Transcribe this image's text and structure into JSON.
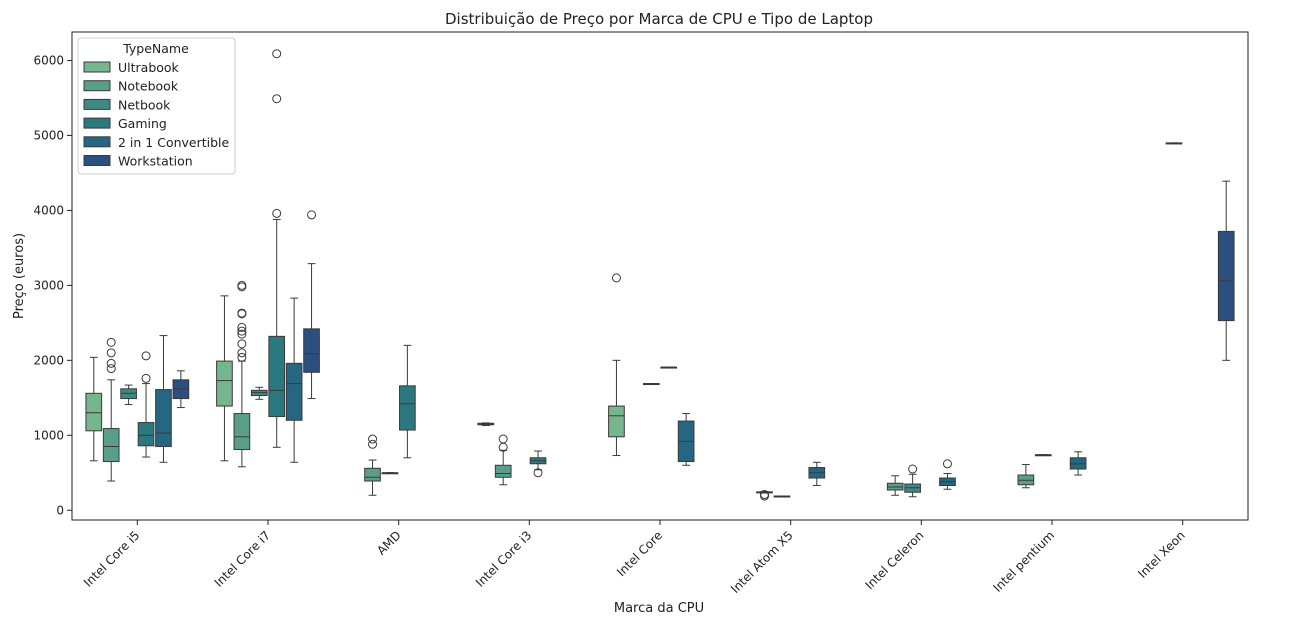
{
  "chart_data": {
    "type": "boxplot",
    "title": "Distribuição de Preço por Marca de CPU e Tipo de Laptop",
    "xlabel": "Marca da CPU",
    "ylabel": "Preço (euros)",
    "ylim": [
      -130,
      6380
    ],
    "yticks": [
      0,
      1000,
      2000,
      3000,
      4000,
      5000,
      6000
    ],
    "grid": false,
    "legend": {
      "title": "TypeName",
      "placement": "top-left"
    },
    "categories": [
      "Intel Core i5",
      "Intel Core i7",
      "AMD",
      "Intel Core i3",
      "Intel Core",
      "Intel Atom X5",
      "Intel Celeron",
      "Intel pentium",
      "Intel Xeon"
    ],
    "series": [
      {
        "name": "Ultrabook",
        "color": "#76b58e",
        "boxes": [
          {
            "cat": 0,
            "wlo": 660,
            "q1": 1060,
            "med": 1300,
            "q3": 1560,
            "whi": 2040,
            "out": []
          },
          {
            "cat": 1,
            "wlo": 660,
            "q1": 1390,
            "med": 1730,
            "q3": 1990,
            "whi": 2860,
            "out": []
          },
          null,
          {
            "cat": 3,
            "wlo": 1130,
            "q1": 1140,
            "med": 1150,
            "q3": 1160,
            "whi": 1165,
            "out": []
          },
          {
            "cat": 4,
            "wlo": 730,
            "q1": 980,
            "med": 1260,
            "q3": 1390,
            "whi": 2000,
            "out": [
              3100
            ]
          },
          null,
          null,
          null,
          null
        ]
      },
      {
        "name": "Notebook",
        "color": "#5a9e8a",
        "boxes": [
          {
            "cat": 0,
            "wlo": 390,
            "q1": 650,
            "med": 850,
            "q3": 1090,
            "whi": 1740,
            "out": [
              1890,
              1960,
              2100,
              2240
            ]
          },
          {
            "cat": 1,
            "wlo": 580,
            "q1": 810,
            "med": 980,
            "q3": 1290,
            "whi": 1990,
            "out": [
              2040,
              2100,
              2220,
              2350,
              2390,
              2440,
              2620,
              2630,
              2980,
              3000
            ]
          },
          {
            "cat": 2,
            "wlo": 200,
            "q1": 390,
            "med": 440,
            "q3": 560,
            "whi": 670,
            "out": [
              880,
              950
            ]
          },
          {
            "cat": 3,
            "wlo": 340,
            "q1": 440,
            "med": 490,
            "q3": 600,
            "whi": 800,
            "out": [
              840,
              950
            ]
          },
          null,
          {
            "cat": 5,
            "wlo": 230,
            "q1": 235,
            "med": 240,
            "q3": 245,
            "whi": 250,
            "out": [
              190,
              210
            ]
          },
          {
            "cat": 6,
            "wlo": 200,
            "q1": 270,
            "med": 310,
            "q3": 360,
            "whi": 460,
            "out": []
          },
          {
            "cat": 7,
            "wlo": 300,
            "q1": 340,
            "med": 400,
            "q3": 470,
            "whi": 610,
            "out": []
          },
          null
        ]
      },
      {
        "name": "Netbook",
        "color": "#3e8a83",
        "boxes": [
          {
            "cat": 0,
            "wlo": 1410,
            "q1": 1490,
            "med": 1560,
            "q3": 1620,
            "whi": 1670,
            "out": []
          },
          {
            "cat": 1,
            "wlo": 1480,
            "q1": 1530,
            "med": 1570,
            "q3": 1600,
            "whi": 1640,
            "out": []
          },
          {
            "cat": 2,
            "wlo": 500,
            "q1": 500,
            "med": 500,
            "q3": 500,
            "whi": 500,
            "out": []
          },
          null,
          {
            "cat": 4,
            "wlo": 1690,
            "q1": 1690,
            "med": 1690,
            "q3": 1690,
            "whi": 1690,
            "out": []
          },
          {
            "cat": 5,
            "wlo": 190,
            "q1": 190,
            "med": 190,
            "q3": 190,
            "whi": 190,
            "out": []
          },
          {
            "cat": 6,
            "wlo": 180,
            "q1": 240,
            "med": 300,
            "q3": 350,
            "whi": 480,
            "out": [
              550
            ]
          },
          {
            "cat": 7,
            "wlo": 740,
            "q1": 740,
            "med": 740,
            "q3": 740,
            "whi": 740,
            "out": []
          },
          {
            "cat": 8,
            "wlo": 4900,
            "q1": 4900,
            "med": 4900,
            "q3": 4900,
            "whi": 4900,
            "out": []
          }
        ]
      },
      {
        "name": "Gaming",
        "color": "#2c787f",
        "boxes": [
          {
            "cat": 0,
            "wlo": 710,
            "q1": 860,
            "med": 1000,
            "q3": 1170,
            "whi": 1690,
            "out": [
              1760,
              2060
            ]
          },
          {
            "cat": 1,
            "wlo": 840,
            "q1": 1250,
            "med": 1600,
            "q3": 2320,
            "whi": 3880,
            "out": [
              3960,
              5490,
              6090
            ]
          },
          {
            "cat": 2,
            "wlo": 700,
            "q1": 1070,
            "med": 1420,
            "q3": 1660,
            "whi": 2200,
            "out": []
          },
          {
            "cat": 3,
            "wlo": 540,
            "q1": 620,
            "med": 660,
            "q3": 700,
            "whi": 790,
            "out": [
              500
            ]
          },
          {
            "cat": 4,
            "wlo": 1910,
            "q1": 1910,
            "med": 1910,
            "q3": 1910,
            "whi": 1910,
            "out": []
          },
          null,
          null,
          null,
          null
        ]
      },
      {
        "name": "2 in 1 Convertible",
        "color": "#256682",
        "boxes": [
          {
            "cat": 0,
            "wlo": 640,
            "q1": 850,
            "med": 1030,
            "q3": 1610,
            "whi": 2330,
            "out": []
          },
          {
            "cat": 1,
            "wlo": 640,
            "q1": 1200,
            "med": 1690,
            "q3": 1960,
            "whi": 2830,
            "out": []
          },
          null,
          null,
          {
            "cat": 4,
            "wlo": 600,
            "q1": 650,
            "med": 920,
            "q3": 1190,
            "whi": 1290,
            "out": []
          },
          {
            "cat": 5,
            "wlo": 330,
            "q1": 430,
            "med": 500,
            "q3": 570,
            "whi": 640,
            "out": []
          },
          {
            "cat": 6,
            "wlo": 280,
            "q1": 330,
            "med": 380,
            "q3": 430,
            "whi": 490,
            "out": [
              620
            ]
          },
          {
            "cat": 7,
            "wlo": 470,
            "q1": 550,
            "med": 620,
            "q3": 700,
            "whi": 780,
            "out": []
          },
          null
        ]
      },
      {
        "name": "Workstation",
        "color": "#2c4f7f",
        "boxes": [
          {
            "cat": 0,
            "wlo": 1370,
            "q1": 1490,
            "med": 1620,
            "q3": 1740,
            "whi": 1860,
            "out": []
          },
          {
            "cat": 1,
            "wlo": 1490,
            "q1": 1840,
            "med": 2090,
            "q3": 2420,
            "whi": 3290,
            "out": [
              3940
            ]
          },
          null,
          null,
          null,
          null,
          null,
          null,
          {
            "cat": 8,
            "wlo": 2000,
            "q1": 2530,
            "med": 3060,
            "q3": 3720,
            "whi": 4390,
            "out": []
          }
        ]
      }
    ]
  }
}
